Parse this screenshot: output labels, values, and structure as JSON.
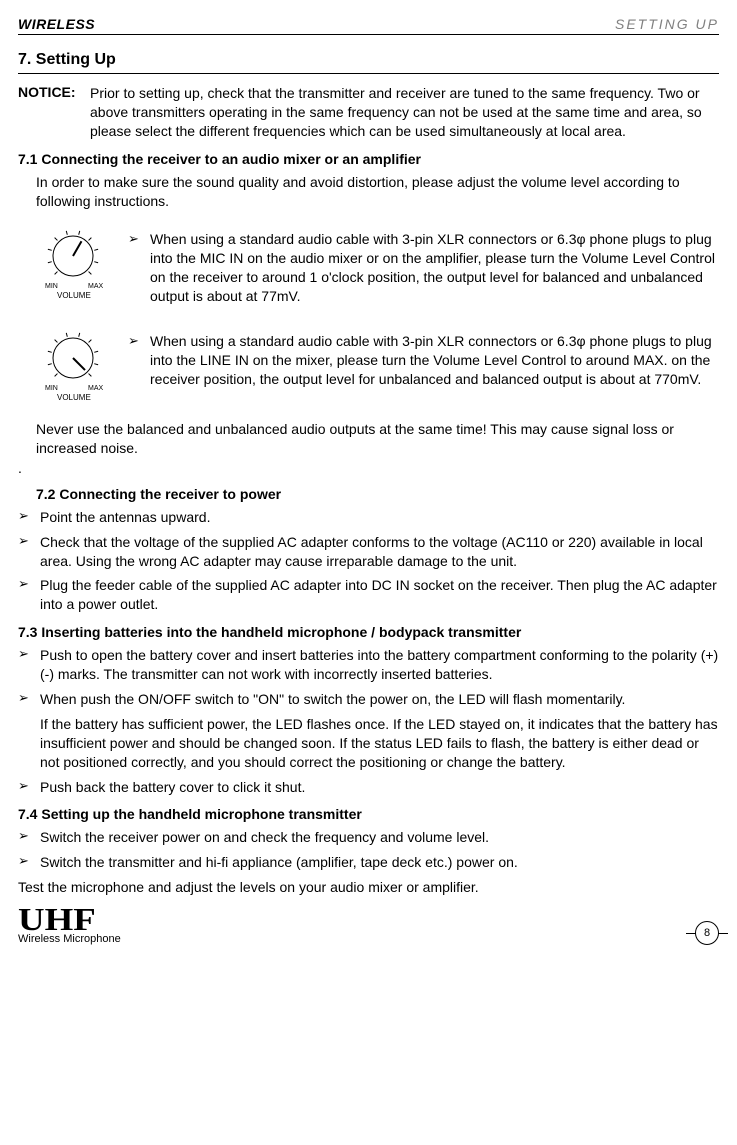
{
  "top": {
    "left": "WIRELESS",
    "right": "SETTING UP"
  },
  "section_title": "7. Setting Up",
  "notice": {
    "label": "NOTICE:",
    "text": "Prior to setting up, check that the transmitter and receiver are tuned to the same frequency.    Two or above transmitters operating in the same frequency can not be used at the same time and area, so please select the different frequencies which can be used simultaneously at local area."
  },
  "s71": {
    "head": "7.1 Connecting the receiver to an audio mixer or an amplifier",
    "intro": "In order to make sure the sound quality and avoid distortion, please adjust the volume level according to following instructions.",
    "dial1": {
      "min": "MIN",
      "max": "MAX",
      "label": "VOLUME",
      "angle": 30,
      "text": "When using a standard audio cable with 3-pin XLR connectors or 6.3φ phone plugs to plug into the MIC IN on the audio mixer or on the amplifier, please turn the Volume Level Control on the receiver to around 1 o'clock position, the output level for balanced and unbalanced output is about at 77mV."
    },
    "dial2": {
      "min": "MIN",
      "max": "MAX",
      "label": "VOLUME",
      "angle": 135,
      "text": "When using a standard audio cable with 3-pin XLR connectors or 6.3φ phone plugs to plug into the LINE IN on the mixer, please turn the Volume Level Control to around MAX. on the receiver position, the output level for unbalanced and balanced output is about at 770mV."
    },
    "note": "Never use the balanced and unbalanced audio outputs at the same time!    This may cause signal loss or increased noise.",
    "dot": "."
  },
  "s72": {
    "head": "7.2 Connecting the receiver to power",
    "b1": "Point the antennas upward.",
    "b2": "Check that the voltage of the supplied AC adapter conforms to the voltage (AC110 or 220) available in local area.    Using the wrong AC adapter may cause irreparable damage to the unit.",
    "b3": "Plug the feeder cable of the supplied AC adapter into DC IN socket on the receiver.    Then plug the AC adapter into a power outlet."
  },
  "s73": {
    "head": "7.3 Inserting batteries into the handheld microphone / bodypack transmitter",
    "b1": "Push to open the battery cover and insert batteries into the battery compartment conforming to the polarity (+)(-) marks.    The transmitter can not work with incorrectly inserted batteries.",
    "b2": "When push the ON/OFF switch to \"ON\" to switch the power on, the LED will flash momentarily.",
    "b2sub": "If the battery has sufficient power, the LED flashes once.    If the LED stayed on, it indicates that the battery has insufficient power and should be changed soon.    If the status LED fails to flash, the battery is either dead or not positioned correctly, and you should correct the positioning or change the battery.",
    "b3": "Push back the battery cover to click it shut."
  },
  "s74": {
    "head": "7.4 Setting up the handheld microphone transmitter",
    "b1": "Switch the receiver power on and check the frequency and volume level.",
    "b2": "Switch the transmitter and hi-fi appliance (amplifier, tape deck etc.) power on.",
    "after": "Test the microphone and adjust the levels on your audio mixer or amplifier."
  },
  "footer": {
    "logo": "UHF",
    "sub": "Wireless Microphone",
    "page": "8"
  },
  "bullet_glyph": "➢",
  "colors": {
    "gray": "#808080",
    "black": "#000000"
  }
}
